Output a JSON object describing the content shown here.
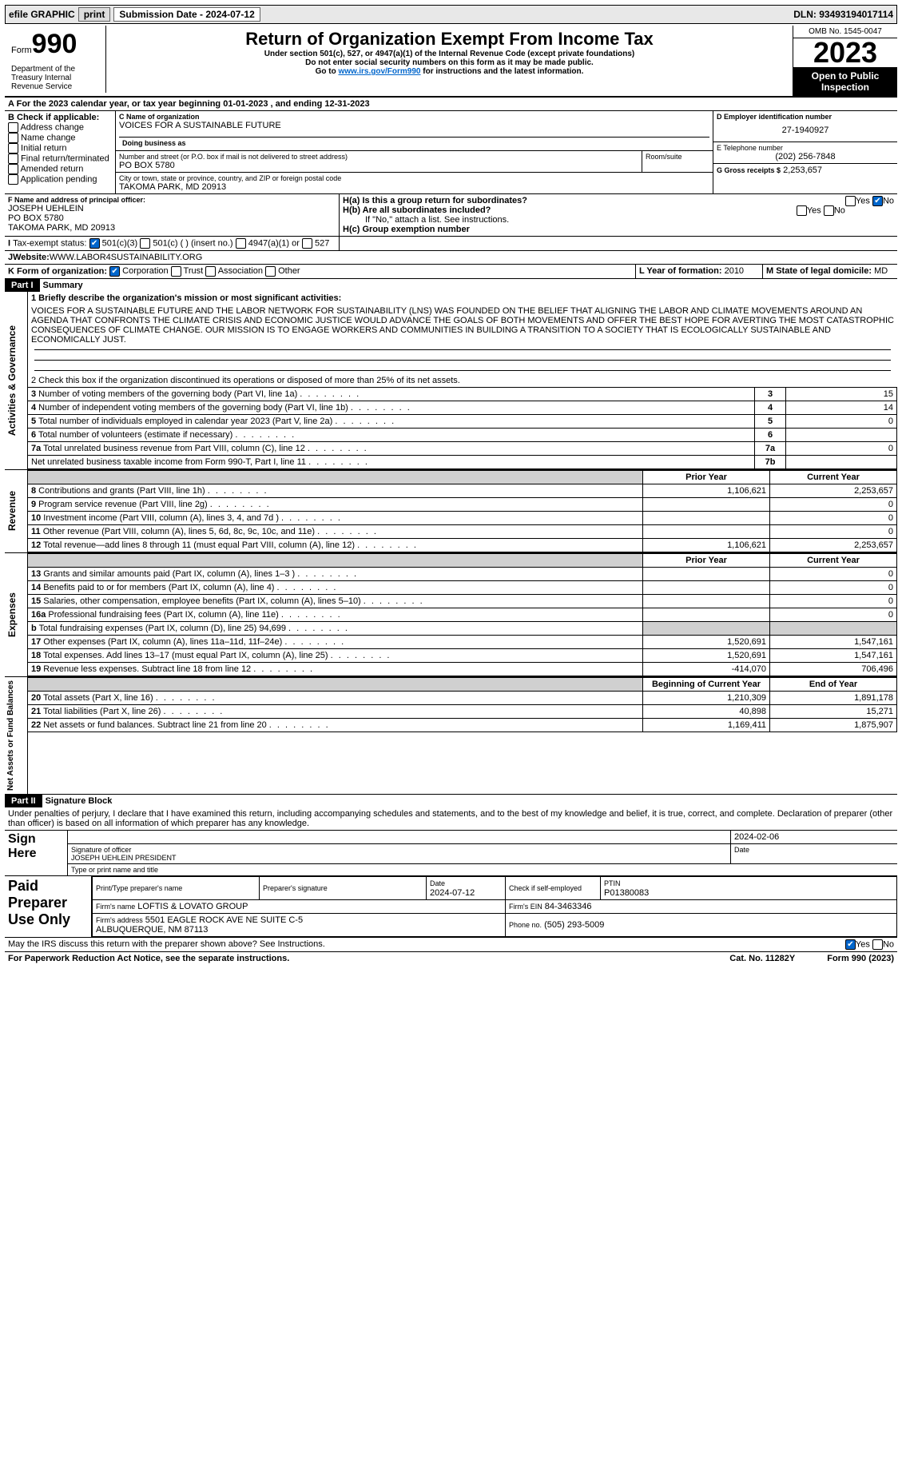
{
  "topbar": {
    "efile": "efile GRAPHIC",
    "print": "print",
    "sub_label": "Submission Date - 2024-07-12",
    "dln": "DLN: 93493194017114"
  },
  "header": {
    "form_word": "Form",
    "form_num": "990",
    "title": "Return of Organization Exempt From Income Tax",
    "subtitle": "Under section 501(c), 527, or 4947(a)(1) of the Internal Revenue Code (except private foundations)",
    "note1": "Do not enter social security numbers on this form as it may be made public.",
    "note2_pre": "Go to ",
    "note2_link": "www.irs.gov/Form990",
    "note2_post": " for instructions and the latest information.",
    "omb": "OMB No. 1545-0047",
    "year": "2023",
    "open": "Open to Public Inspection",
    "dept": "Department of the Treasury Internal Revenue Service"
  },
  "sectionA": {
    "line": "For the 2023 calendar year, or tax year beginning 01-01-2023   , and ending 12-31-2023",
    "B_label": "B Check if applicable:",
    "b_items": [
      "Address change",
      "Name change",
      "Initial return",
      "Final return/terminated",
      "Amended return",
      "Application pending"
    ],
    "C_label": "C Name of organization",
    "org_name": "VOICES FOR A SUSTAINABLE FUTURE",
    "dba_label": "Doing business as",
    "addr_label": "Number and street (or P.O. box if mail is not delivered to street address)",
    "room_label": "Room/suite",
    "addr": "PO BOX 5780",
    "city_label": "City or town, state or province, country, and ZIP or foreign postal code",
    "city": "TAKOMA PARK, MD  20913",
    "D_label": "D Employer identification number",
    "ein": "27-1940927",
    "E_label": "E Telephone number",
    "phone": "(202) 256-7848",
    "G_label": "G Gross receipts $",
    "gross": "2,253,657",
    "F_label": "F  Name and address of principal officer:",
    "officer": "JOSEPH UEHLEIN\nPO BOX 5780\nTAKOMA PARK, MD  20913",
    "Ha": "H(a)  Is this a group return for subordinates?",
    "Hb": "H(b)  Are all subordinates included?",
    "Hb_note": "If \"No,\" attach a list. See instructions.",
    "Hc": "H(c)  Group exemption number",
    "yes": "Yes",
    "no": "No",
    "I_label": "Tax-exempt status:",
    "i_501c3": "501(c)(3)",
    "i_501c": "501(c) (  ) (insert no.)",
    "i_4947": "4947(a)(1) or",
    "i_527": "527",
    "J_label": "Website:",
    "website": "WWW.LABOR4SUSTAINABILITY.ORG",
    "K_label": "K Form of organization:",
    "k_items": [
      "Corporation",
      "Trust",
      "Association",
      "Other"
    ],
    "L_label": "L Year of formation:",
    "L_val": "2010",
    "M_label": "M State of legal domicile:",
    "M_val": "MD"
  },
  "part1": {
    "hdr": "Part I",
    "title": "Summary",
    "line1_label": "1  Briefly describe the organization's mission or most significant activities:",
    "mission": "VOICES FOR A SUSTAINABLE FUTURE AND THE LABOR NETWORK FOR SUSTAINABILITY (LNS) WAS FOUNDED ON THE BELIEF THAT ALIGNING THE LABOR AND CLIMATE MOVEMENTS AROUND AN AGENDA THAT CONFRONTS THE CLIMATE CRISIS AND ECONOMIC JUSTICE WOULD ADVANCE THE GOALS OF BOTH MOVEMENTS AND OFFER THE BEST HOPE FOR AVERTING THE MOST CATASTROPHIC CONSEQUENCES OF CLIMATE CHANGE. OUR MISSION IS TO ENGAGE WORKERS AND COMMUNITIES IN BUILDING A TRANSITION TO A SOCIETY THAT IS ECOLOGICALLY SUSTAINABLE AND ECONOMICALLY JUST.",
    "sidebar_ag": "Activities & Governance",
    "line2": "2   Check this box      if the organization discontinued its operations or disposed of more than 25% of its net assets.",
    "rows_ag": [
      {
        "n": "3",
        "t": "Number of voting members of the governing body (Part VI, line 1a)",
        "box": "3",
        "v": "15"
      },
      {
        "n": "4",
        "t": "Number of independent voting members of the governing body (Part VI, line 1b)",
        "box": "4",
        "v": "14"
      },
      {
        "n": "5",
        "t": "Total number of individuals employed in calendar year 2023 (Part V, line 2a)",
        "box": "5",
        "v": "0"
      },
      {
        "n": "6",
        "t": "Total number of volunteers (estimate if necessary)",
        "box": "6",
        "v": ""
      },
      {
        "n": "7a",
        "t": "Total unrelated business revenue from Part VIII, column (C), line 12",
        "box": "7a",
        "v": "0"
      },
      {
        "n": "",
        "t": "Net unrelated business taxable income from Form 990-T, Part I, line 11",
        "box": "7b",
        "v": ""
      }
    ],
    "sidebar_rev": "Revenue",
    "hdr_prior": "Prior Year",
    "hdr_curr": "Current Year",
    "rows_rev": [
      {
        "n": "8",
        "t": "Contributions and grants (Part VIII, line 1h)",
        "p": "1,106,621",
        "c": "2,253,657"
      },
      {
        "n": "9",
        "t": "Program service revenue (Part VIII, line 2g)",
        "p": "",
        "c": "0"
      },
      {
        "n": "10",
        "t": "Investment income (Part VIII, column (A), lines 3, 4, and 7d )",
        "p": "",
        "c": "0"
      },
      {
        "n": "11",
        "t": "Other revenue (Part VIII, column (A), lines 5, 6d, 8c, 9c, 10c, and 11e)",
        "p": "",
        "c": "0"
      },
      {
        "n": "12",
        "t": "Total revenue—add lines 8 through 11 (must equal Part VIII, column (A), line 12)",
        "p": "1,106,621",
        "c": "2,253,657"
      }
    ],
    "sidebar_exp": "Expenses",
    "rows_exp": [
      {
        "n": "13",
        "t": "Grants and similar amounts paid (Part IX, column (A), lines 1–3 )",
        "p": "",
        "c": "0"
      },
      {
        "n": "14",
        "t": "Benefits paid to or for members (Part IX, column (A), line 4)",
        "p": "",
        "c": "0"
      },
      {
        "n": "15",
        "t": "Salaries, other compensation, employee benefits (Part IX, column (A), lines 5–10)",
        "p": "",
        "c": "0"
      },
      {
        "n": "16a",
        "t": "Professional fundraising fees (Part IX, column (A), line 11e)",
        "p": "",
        "c": "0"
      },
      {
        "n": "b",
        "t": "Total fundraising expenses (Part IX, column (D), line 25) 94,699",
        "p": "shade",
        "c": "shade"
      },
      {
        "n": "17",
        "t": "Other expenses (Part IX, column (A), lines 11a–11d, 11f–24e)",
        "p": "1,520,691",
        "c": "1,547,161"
      },
      {
        "n": "18",
        "t": "Total expenses. Add lines 13–17 (must equal Part IX, column (A), line 25)",
        "p": "1,520,691",
        "c": "1,547,161"
      },
      {
        "n": "19",
        "t": "Revenue less expenses. Subtract line 18 from line 12",
        "p": "-414,070",
        "c": "706,496"
      }
    ],
    "sidebar_na": "Net Assets or Fund Balances",
    "hdr_beg": "Beginning of Current Year",
    "hdr_end": "End of Year",
    "rows_na": [
      {
        "n": "20",
        "t": "Total assets (Part X, line 16)",
        "p": "1,210,309",
        "c": "1,891,178"
      },
      {
        "n": "21",
        "t": "Total liabilities (Part X, line 26)",
        "p": "40,898",
        "c": "15,271"
      },
      {
        "n": "22",
        "t": "Net assets or fund balances. Subtract line 21 from line 20",
        "p": "1,169,411",
        "c": "1,875,907"
      }
    ]
  },
  "part2": {
    "hdr": "Part II",
    "title": "Signature Block",
    "decl": "Under penalties of perjury, I declare that I have examined this return, including accompanying schedules and statements, and to the best of my knowledge and belief, it is true, correct, and complete. Declaration of preparer (other than officer) is based on all information of which preparer has any knowledge.",
    "sign_here": "Sign Here",
    "sig_date": "2024-02-06",
    "sig_officer_label": "Signature of officer",
    "sig_officer": "JOSEPH UEHLEIN  PRESIDENT",
    "sig_type_label": "Type or print name and title",
    "date_label": "Date",
    "paid": "Paid Preparer Use Only",
    "prep_name_label": "Print/Type preparer's name",
    "prep_sig_label": "Preparer's signature",
    "prep_date_label": "Date",
    "prep_date": "2024-07-12",
    "check_self": "Check       if self-employed",
    "ptin_label": "PTIN",
    "ptin": "P01380083",
    "firm_name_label": "Firm's name",
    "firm_name": "LOFTIS & LOVATO GROUP",
    "firm_ein_label": "Firm's EIN",
    "firm_ein": "84-3463346",
    "firm_addr_label": "Firm's address",
    "firm_addr": "5501 EAGLE ROCK AVE NE SUITE C-5",
    "firm_city": "ALBUQUERQUE, NM  87113",
    "phone_label": "Phone no.",
    "phone": "(505) 293-5009",
    "discuss": "May the IRS discuss this return with the preparer shown above? See Instructions.",
    "paperwork": "For Paperwork Reduction Act Notice, see the separate instructions.",
    "cat": "Cat. No. 11282Y",
    "formfoot": "Form 990 (2023)"
  }
}
